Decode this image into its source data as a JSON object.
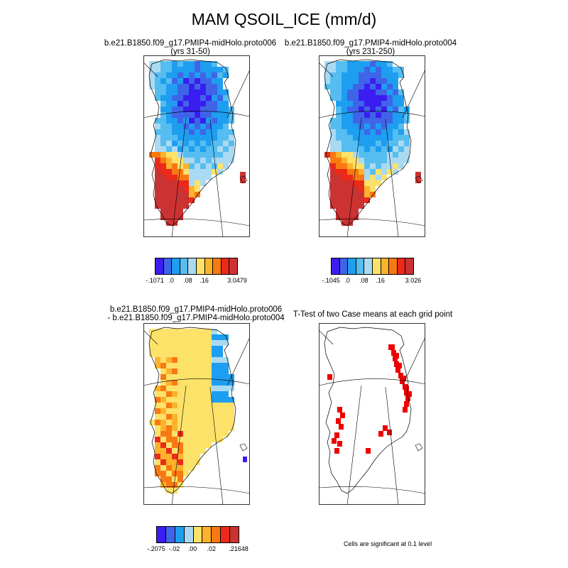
{
  "title": "MAM QSOIL_ICE (mm/d)",
  "colors": {
    "levels": [
      "#3a1df0",
      "#3f64e8",
      "#1e9ef0",
      "#55bdf0",
      "#a9daf2",
      "#fde26a",
      "#fdb22c",
      "#f87912",
      "#ec2a1a",
      "#cb3232"
    ],
    "diff_levels": [
      "#3a1df0",
      "#3f64e8",
      "#1e9ef0",
      "#a9daf2",
      "#fde26a",
      "#fdb22c",
      "#f87912",
      "#ec2a1a",
      "#cb3232"
    ],
    "significant": "#ee0000",
    "outline": "#000000"
  },
  "panels": {
    "case1": {
      "title_line1": "b.e21.B1850.f09_g17.PMIP4-midHolo.proto006",
      "title_line2": "(yrs 31-50)",
      "colorbar_labels": [
        "-.1071",
        ".0",
        ".08",
        ".16",
        "3.0479"
      ]
    },
    "case2": {
      "title_line1": "b.e21.B1850.f09_g17.PMIP4-midHolo.proto004",
      "title_line2": "(yrs 231-250)",
      "colorbar_labels": [
        "-.1045",
        ".0",
        ".08",
        ".16",
        "3.026"
      ]
    },
    "difference": {
      "title_line1": "b.e21.B1850.f09_g17.PMIP4-midHolo.proto006",
      "title_line2": "- b.e21.B1850.f09_g17.PMIP4-midHolo.proto004",
      "colorbar_labels": [
        "-.2075",
        "-.02",
        ".00",
        ".02",
        ".21648"
      ]
    },
    "ttest": {
      "title": "T-Test of two Case means at each grid point",
      "note": "Cells are significant at 0.1 level"
    }
  }
}
